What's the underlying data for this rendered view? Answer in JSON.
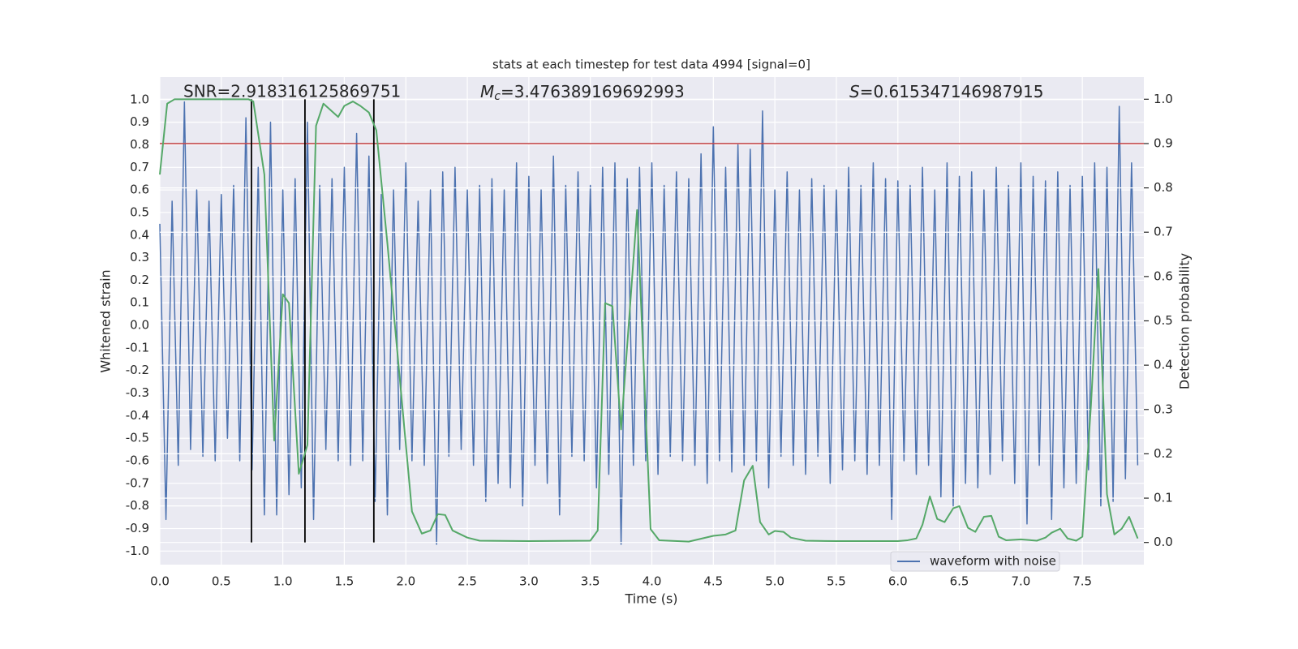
{
  "chart_data": {
    "type": "line",
    "title": "stats at each timestep for test data 4994 [signal=0]",
    "xlabel": "Time (s)",
    "ylabel": "Whitened strain",
    "y2label": "Detection probability",
    "annotations": [
      {
        "text": "SNR=2.918316125869751"
      },
      {
        "symbol": "M",
        "subscript": "c",
        "text": "=3.476389169692993"
      },
      {
        "symbol": "S",
        "text": "=0.615347146987915"
      }
    ],
    "xlim": [
      0,
      8
    ],
    "ylim": [
      -1.06,
      1.1
    ],
    "y2lim": [
      -0.05,
      1.05
    ],
    "grid": true,
    "legend": "lower right",
    "xticks": [
      {
        "value": 0,
        "label": "0.0"
      },
      {
        "value": 0.5,
        "label": "0.5"
      },
      {
        "value": 1,
        "label": "1.0"
      },
      {
        "value": 1.5,
        "label": "1.5"
      },
      {
        "value": 2,
        "label": "2.0"
      },
      {
        "value": 2.5,
        "label": "2.5"
      },
      {
        "value": 3,
        "label": "3.0"
      },
      {
        "value": 3.5,
        "label": "3.5"
      },
      {
        "value": 4,
        "label": "4.0"
      },
      {
        "value": 4.5,
        "label": "4.5"
      },
      {
        "value": 5,
        "label": "5.0"
      },
      {
        "value": 5.5,
        "label": "5.5"
      },
      {
        "value": 6,
        "label": "6.0"
      },
      {
        "value": 6.5,
        "label": "6.5"
      },
      {
        "value": 7,
        "label": "7.0"
      },
      {
        "value": 7.5,
        "label": "7.5"
      }
    ],
    "yticks": [
      {
        "value": -1,
        "label": "-1.0"
      },
      {
        "value": -0.9,
        "label": "-0.9"
      },
      {
        "value": -0.8,
        "label": "-0.8"
      },
      {
        "value": -0.7,
        "label": "-0.7"
      },
      {
        "value": -0.6,
        "label": "-0.6"
      },
      {
        "value": -0.5,
        "label": "-0.5"
      },
      {
        "value": -0.4,
        "label": "-0.4"
      },
      {
        "value": -0.3,
        "label": "-0.3"
      },
      {
        "value": -0.2,
        "label": "-0.2"
      },
      {
        "value": -0.1,
        "label": "-0.1"
      },
      {
        "value": 0,
        "label": "0.0"
      },
      {
        "value": 0.1,
        "label": "0.1"
      },
      {
        "value": 0.2,
        "label": "0.2"
      },
      {
        "value": 0.3,
        "label": "0.3"
      },
      {
        "value": 0.4,
        "label": "0.4"
      },
      {
        "value": 0.5,
        "label": "0.5"
      },
      {
        "value": 0.6,
        "label": "0.6"
      },
      {
        "value": 0.7,
        "label": "0.7"
      },
      {
        "value": 0.8,
        "label": "0.8"
      },
      {
        "value": 0.9,
        "label": "0.9"
      },
      {
        "value": 1,
        "label": "1.0"
      }
    ],
    "y2ticks": [
      {
        "value": 0,
        "label": "0.0"
      },
      {
        "value": 0.1,
        "label": "0.1"
      },
      {
        "value": 0.2,
        "label": "0.2"
      },
      {
        "value": 0.3,
        "label": "0.3"
      },
      {
        "value": 0.4,
        "label": "0.4"
      },
      {
        "value": 0.5,
        "label": "0.5"
      },
      {
        "value": 0.6,
        "label": "0.6"
      },
      {
        "value": 0.7,
        "label": "0.7"
      },
      {
        "value": 0.8,
        "label": "0.8"
      },
      {
        "value": 0.9,
        "label": "0.9"
      },
      {
        "value": 1,
        "label": "1.0"
      }
    ],
    "threshold": {
      "value": 0.9,
      "axis": "y2",
      "color": "#c03d3e"
    },
    "vlines": {
      "x": [
        0.745,
        1.18,
        1.74
      ],
      "range": [
        0,
        1
      ],
      "axis": "y2",
      "color": "#000000"
    },
    "series": [
      {
        "name": "waveform with noise",
        "color": "#4c72b0",
        "x": [
          0,
          0.05,
          0.1,
          0.15,
          0.2,
          0.25,
          0.3,
          0.35,
          0.4,
          0.45,
          0.5,
          0.55,
          0.6,
          0.65,
          0.7,
          0.75,
          0.8,
          0.85,
          0.9,
          0.95,
          1,
          1.05,
          1.1,
          1.15,
          1.2,
          1.25,
          1.3,
          1.35,
          1.4,
          1.45,
          1.5,
          1.55,
          1.6,
          1.65,
          1.7,
          1.75,
          1.8,
          1.85,
          1.9,
          1.95,
          2,
          2.05,
          2.1,
          2.15,
          2.2,
          2.25,
          2.3,
          2.35,
          2.4,
          2.45,
          2.5,
          2.55,
          2.6,
          2.65,
          2.7,
          2.75,
          2.8,
          2.85,
          2.9,
          2.95,
          3,
          3.05,
          3.1,
          3.15,
          3.2,
          3.25,
          3.3,
          3.35,
          3.4,
          3.45,
          3.5,
          3.55,
          3.6,
          3.65,
          3.7,
          3.75,
          3.8,
          3.85,
          3.9,
          3.95,
          4,
          4.05,
          4.1,
          4.15,
          4.2,
          4.25,
          4.3,
          4.35,
          4.4,
          4.45,
          4.5,
          4.55,
          4.6,
          4.65,
          4.7,
          4.75,
          4.8,
          4.85,
          4.9,
          4.95,
          5,
          5.05,
          5.1,
          5.15,
          5.2,
          5.25,
          5.3,
          5.35,
          5.4,
          5.45,
          5.5,
          5.55,
          5.6,
          5.65,
          5.7,
          5.75,
          5.8,
          5.85,
          5.9,
          5.95,
          6,
          6.05,
          6.1,
          6.15,
          6.2,
          6.25,
          6.3,
          6.35,
          6.4,
          6.45,
          6.5,
          6.55,
          6.6,
          6.65,
          6.7,
          6.75,
          6.8,
          6.85,
          6.9,
          6.95,
          7,
          7.05,
          7.1,
          7.15,
          7.2,
          7.25,
          7.3,
          7.35,
          7.4,
          7.45,
          7.5,
          7.55,
          7.6,
          7.65,
          7.7,
          7.75,
          7.8,
          7.85,
          7.9,
          7.95
        ],
        "values": [
          0.45,
          -0.86,
          0.55,
          -0.62,
          0.99,
          -0.55,
          0.6,
          -0.58,
          0.55,
          -0.6,
          0.58,
          -0.5,
          0.62,
          -0.6,
          0.92,
          -0.64,
          0.7,
          -0.84,
          0.9,
          -0.84,
          0.6,
          -0.75,
          0.65,
          -0.72,
          0.9,
          -0.86,
          0.62,
          -0.55,
          0.65,
          -0.6,
          0.7,
          -0.62,
          0.85,
          -0.6,
          0.75,
          -0.78,
          0.58,
          -0.84,
          0.6,
          -0.55,
          0.72,
          -0.6,
          0.55,
          -0.62,
          0.6,
          -0.97,
          0.68,
          -0.58,
          0.7,
          -0.55,
          0.6,
          -0.62,
          0.62,
          -0.78,
          0.65,
          -0.7,
          0.6,
          -0.72,
          0.72,
          -0.8,
          0.66,
          -0.62,
          0.6,
          -0.7,
          0.75,
          -0.84,
          0.62,
          -0.58,
          0.68,
          -0.6,
          0.62,
          -0.72,
          0.7,
          -0.66,
          0.72,
          -0.97,
          0.65,
          -0.62,
          0.7,
          -0.6,
          0.72,
          -0.66,
          0.62,
          -0.58,
          0.68,
          -0.6,
          0.65,
          -0.62,
          0.76,
          -0.7,
          0.88,
          -0.6,
          0.7,
          -0.65,
          0.8,
          -0.62,
          0.78,
          -0.6,
          0.95,
          -0.72,
          0.6,
          -0.58,
          0.68,
          -0.62,
          0.6,
          -0.66,
          0.65,
          -0.58,
          0.62,
          -0.7,
          0.6,
          -0.64,
          0.7,
          -0.6,
          0.62,
          -0.66,
          0.72,
          -0.62,
          0.65,
          -0.86,
          0.64,
          -0.6,
          0.62,
          -0.66,
          0.7,
          -0.62,
          0.6,
          -0.76,
          0.72,
          -0.8,
          0.66,
          -0.7,
          0.68,
          -0.72,
          0.6,
          -0.66,
          0.7,
          -0.6,
          0.62,
          -0.7,
          0.72,
          -0.88,
          0.66,
          -0.62,
          0.64,
          -0.86,
          0.68,
          -0.72,
          0.62,
          -0.7,
          0.66,
          -0.64,
          0.72,
          -0.8,
          0.7,
          -0.78,
          0.97,
          -0.68,
          0.72,
          -0.62
        ]
      },
      {
        "name": "Detection probability",
        "color": "#55a868",
        "axis": "y2",
        "x": [
          0,
          0.06,
          0.12,
          0.72,
          0.76,
          0.85,
          0.93,
          1,
          1.05,
          1.13,
          1.2,
          1.27,
          1.33,
          1.45,
          1.5,
          1.57,
          1.63,
          1.7,
          1.76,
          1.85,
          2.05,
          2.13,
          2.2,
          2.26,
          2.32,
          2.38,
          2.5,
          2.6,
          3,
          3.5,
          3.56,
          3.62,
          3.68,
          3.75,
          3.88,
          3.99,
          4.06,
          4.3,
          4.5,
          4.6,
          4.68,
          4.75,
          4.82,
          4.88,
          4.95,
          5,
          5.07,
          5.13,
          5.25,
          5.5,
          6,
          6.08,
          6.15,
          6.2,
          6.26,
          6.32,
          6.38,
          6.45,
          6.5,
          6.57,
          6.63,
          6.7,
          6.76,
          6.82,
          6.88,
          7,
          7.13,
          7.2,
          7.25,
          7.32,
          7.38,
          7.45,
          7.5,
          7.57,
          7.63,
          7.7,
          7.76,
          7.82,
          7.88,
          7.95
        ],
        "values": [
          0.83,
          0.99,
          1,
          1,
          0.995,
          0.83,
          0.23,
          0.56,
          0.54,
          0.155,
          0.22,
          0.94,
          0.99,
          0.96,
          0.985,
          0.995,
          0.985,
          0.97,
          0.93,
          0.675,
          0.07,
          0.02,
          0.027,
          0.064,
          0.062,
          0.027,
          0.011,
          0.004,
          0.003,
          0.004,
          0.027,
          0.54,
          0.533,
          0.255,
          0.75,
          0.03,
          0.005,
          0.002,
          0.015,
          0.018,
          0.027,
          0.14,
          0.173,
          0.046,
          0.018,
          0.026,
          0.024,
          0.011,
          0.004,
          0.003,
          0.003,
          0.005,
          0.009,
          0.04,
          0.104,
          0.053,
          0.046,
          0.077,
          0.082,
          0.033,
          0.024,
          0.058,
          0.06,
          0.013,
          0.005,
          0.007,
          0.004,
          0.011,
          0.022,
          0.031,
          0.009,
          0.004,
          0.013,
          0.31,
          0.617,
          0.109,
          0.018,
          0.031,
          0.058,
          0.009
        ]
      }
    ]
  }
}
